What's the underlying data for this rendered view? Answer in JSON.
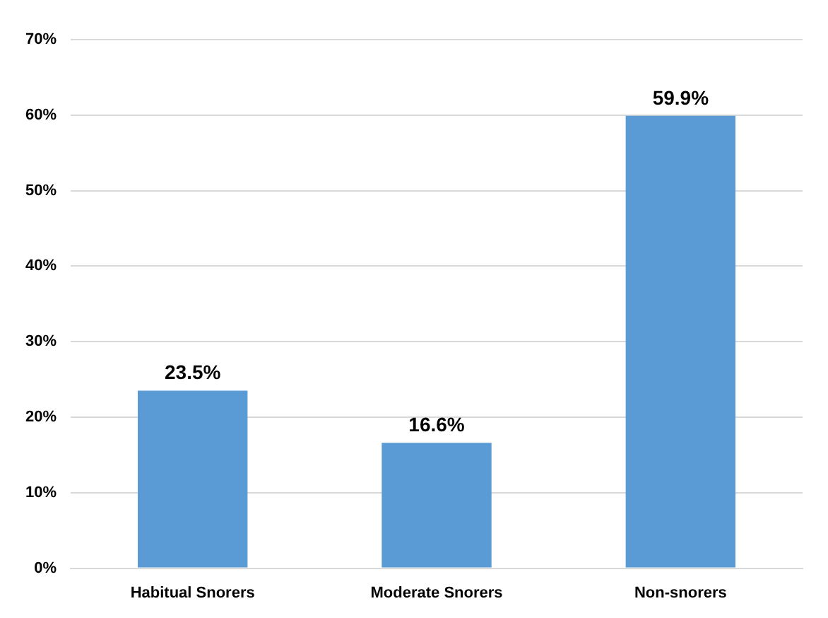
{
  "chart_data": {
    "type": "bar",
    "categories": [
      "Habitual Snorers",
      "Moderate Snorers",
      "Non-snorers"
    ],
    "values": [
      23.5,
      16.6,
      59.9
    ],
    "value_labels": [
      "23.5%",
      "16.6%",
      "59.9%"
    ],
    "color": "#5b9bd5",
    "ylim": [
      0,
      70
    ],
    "yticks": [
      {
        "value": 0,
        "label": "0%"
      },
      {
        "value": 10,
        "label": "10%"
      },
      {
        "value": 20,
        "label": "20%"
      },
      {
        "value": 30,
        "label": "30%"
      },
      {
        "value": 40,
        "label": "40%"
      },
      {
        "value": 50,
        "label": "50%"
      },
      {
        "value": 60,
        "label": "60%"
      },
      {
        "value": 70,
        "label": "70%"
      }
    ],
    "grid": "y"
  }
}
